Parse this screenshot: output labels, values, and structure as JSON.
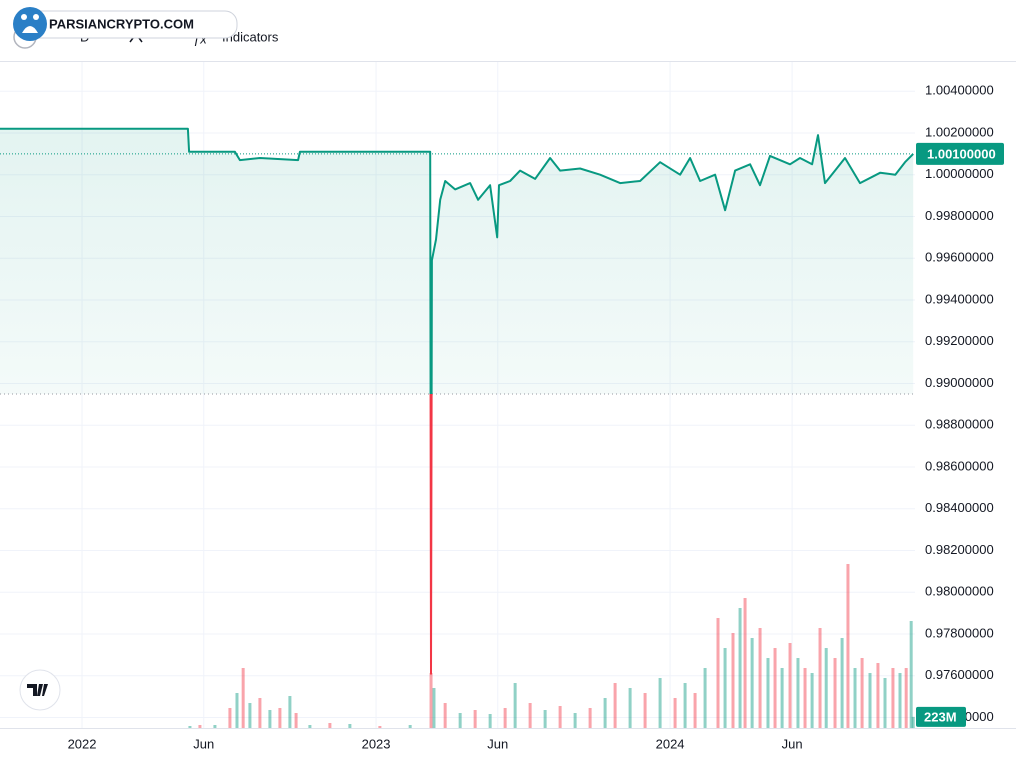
{
  "toolbar": {
    "watermark": "PARSIANCRYPTO.COM",
    "interval": "D",
    "indicators": "Indicators"
  },
  "chart_data": {
    "type": "baseline",
    "x": [
      2021.721,
      2022.36,
      2022.364,
      2022.52,
      2022.537,
      2022.605,
      2022.735,
      2022.741,
      2023.184,
      2023.187,
      2023.19,
      2023.204,
      2023.218,
      2023.235,
      2023.269,
      2023.32,
      2023.347,
      2023.388,
      2023.412,
      2023.418,
      2023.456,
      2023.49,
      2023.541,
      2023.592,
      2023.626,
      2023.694,
      2023.762,
      2023.83,
      2023.898,
      2023.966,
      2024.034,
      2024.068,
      2024.102,
      2024.153,
      2024.187,
      2024.221,
      2024.272,
      2024.306,
      2024.34,
      2024.408,
      2024.442,
      2024.483,
      2024.503,
      2024.527,
      2024.561,
      2024.595,
      2024.646,
      2024.715,
      2024.766,
      2024.799,
      2024.827
    ],
    "values": [
      1.0022,
      1.0022,
      1.0011,
      1.0011,
      1.0007,
      1.0008,
      1.0007,
      1.0011,
      1.0011,
      0.9761,
      0.9959,
      0.9969,
      0.9988,
      0.9997,
      0.9993,
      0.9996,
      0.9988,
      0.9995,
      0.997,
      0.9995,
      0.9997,
      1.0002,
      0.9998,
      1.0008,
      1.0002,
      1.0003,
      1.0,
      0.9996,
      0.9997,
      1.0006,
      1.0,
      1.0008,
      0.9997,
      1.0,
      0.9983,
      1.0002,
      1.0005,
      0.9995,
      1.0009,
      1.0005,
      1.0008,
      1.0005,
      1.0019,
      0.9996,
      1.0002,
      1.0008,
      0.9996,
      1.0001,
      1.0,
      1.0006,
      1.001
    ],
    "baseline": 0.9895,
    "colors": {
      "above": "#089981",
      "below": "#f23645"
    },
    "last_value": {
      "value": 1.001,
      "label": "1.00100000"
    },
    "xlim": [
      2021.721,
      2024.833
    ],
    "xticks": [
      {
        "value": 2022,
        "label": "2022"
      },
      {
        "value": 2022.414,
        "label": "Jun"
      },
      {
        "value": 2023,
        "label": "2023"
      },
      {
        "value": 2023.414,
        "label": "Jun"
      },
      {
        "value": 2024,
        "label": "2024"
      },
      {
        "value": 2024.415,
        "label": "Jun"
      }
    ],
    "ylim": [
      0.9735,
      1.0054
    ],
    "yticks": [
      {
        "value": 0.974,
        "label": "0.97400000"
      },
      {
        "value": 0.976,
        "label": "0.97600000"
      },
      {
        "value": 0.978,
        "label": "0.97800000"
      },
      {
        "value": 0.98,
        "label": "0.98000000"
      },
      {
        "value": 0.982,
        "label": "0.98200000"
      },
      {
        "value": 0.984,
        "label": "0.98400000"
      },
      {
        "value": 0.986,
        "label": "0.98600000"
      },
      {
        "value": 0.988,
        "label": "0.98800000"
      },
      {
        "value": 0.99,
        "label": "0.99000000"
      },
      {
        "value": 0.992,
        "label": "0.99200000"
      },
      {
        "value": 0.994,
        "label": "0.99400000"
      },
      {
        "value": 0.996,
        "label": "0.99600000"
      },
      {
        "value": 0.998,
        "label": "0.99800000"
      },
      {
        "value": 1,
        "label": "1.00000000"
      },
      {
        "value": 1.002,
        "label": "1.00200000"
      },
      {
        "value": 1.004,
        "label": "1.00400000"
      }
    ],
    "grid": true,
    "volume": {
      "x": [
        2022.367,
        2022.401,
        2022.452,
        2022.503,
        2022.527,
        2022.548,
        2022.571,
        2022.605,
        2022.639,
        2022.673,
        2022.707,
        2022.728,
        2022.775,
        2022.843,
        2022.911,
        2023.013,
        2023.116,
        2023.187,
        2023.197,
        2023.235,
        2023.286,
        2023.337,
        2023.388,
        2023.439,
        2023.473,
        2023.524,
        2023.575,
        2023.626,
        2023.677,
        2023.728,
        2023.779,
        2023.813,
        2023.864,
        2023.915,
        2023.966,
        2024.017,
        2024.051,
        2024.085,
        2024.119,
        2024.163,
        2024.187,
        2024.214,
        2024.238,
        2024.255,
        2024.279,
        2024.306,
        2024.333,
        2024.357,
        2024.381,
        2024.408,
        2024.435,
        2024.459,
        2024.483,
        2024.51,
        2024.531,
        2024.561,
        2024.585,
        2024.605,
        2024.629,
        2024.653,
        2024.68,
        2024.707,
        2024.731,
        2024.758,
        2024.782,
        2024.803,
        2024.82,
        2024.827
      ],
      "values": [
        40,
        60,
        60,
        400,
        700,
        1200,
        500,
        600,
        360,
        400,
        640,
        300,
        60,
        100,
        80,
        40,
        60,
        1100,
        800,
        500,
        300,
        360,
        280,
        400,
        900,
        500,
        360,
        440,
        300,
        400,
        600,
        900,
        800,
        700,
        1000,
        600,
        900,
        700,
        1200,
        2200,
        1600,
        1900,
        2400,
        2600,
        1800,
        2000,
        1400,
        1600,
        1200,
        1700,
        1400,
        1200,
        1100,
        2000,
        1600,
        1400,
        1800,
        3280,
        1200,
        1400,
        1100,
        1300,
        1000,
        1200,
        1100,
        1200,
        2140,
        223
      ],
      "colors": [
        "#089981",
        "#f23645",
        "#089981",
        "#f23645",
        "#089981",
        "#f23645",
        "#089981",
        "#f23645",
        "#089981",
        "#f23645",
        "#089981",
        "#f23645",
        "#089981",
        "#f23645",
        "#089981",
        "#f23645",
        "#089981",
        "#f23645",
        "#089981",
        "#f23645",
        "#089981",
        "#f23645",
        "#089981",
        "#f23645",
        "#089981",
        "#f23645",
        "#089981",
        "#f23645",
        "#089981",
        "#f23645",
        "#089981",
        "#f23645",
        "#089981",
        "#f23645",
        "#089981",
        "#f23645",
        "#089981",
        "#f23645",
        "#089981",
        "#f23645",
        "#089981",
        "#f23645",
        "#089981",
        "#f23645",
        "#089981",
        "#f23645",
        "#089981",
        "#f23645",
        "#089981",
        "#f23645",
        "#089981",
        "#f23645",
        "#089981",
        "#f23645",
        "#089981",
        "#f23645",
        "#089981",
        "#f23645",
        "#089981",
        "#f23645",
        "#089981",
        "#f23645",
        "#089981",
        "#f23645",
        "#089981",
        "#f23645",
        "#089981",
        "#089981"
      ],
      "y2lim": [
        0,
        4000
      ],
      "last_value": {
        "value": 223,
        "label": "223M"
      }
    }
  }
}
